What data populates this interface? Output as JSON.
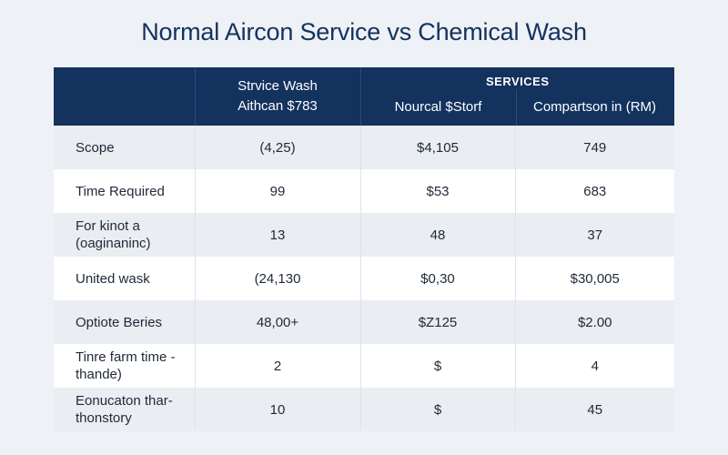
{
  "title": "Normal Aircon Service vs Chemical Wash",
  "header": {
    "col1_line1": "Strvice Wash",
    "col1_line2": "Aithcan $783",
    "group_label": "Services",
    "col2": "Nourcal $Storf",
    "col3": "Compartson in (RM)"
  },
  "rows": [
    {
      "label": [
        "Scope"
      ],
      "v1": "(4,25)",
      "v2": "$4,105",
      "v3": "749"
    },
    {
      "label": [
        "Time Required"
      ],
      "v1": "99",
      "v2": "$53",
      "v3": "683"
    },
    {
      "label": [
        "For kinot a",
        "(oaginaninc)"
      ],
      "v1": "13",
      "v2": "48",
      "v3": "37"
    },
    {
      "label": [
        "United wask"
      ],
      "v1": "(24,130",
      "v2": "$0,30",
      "v3": "$30,005"
    },
    {
      "label": [
        "Optiote Beries"
      ],
      "v1": "48,00+",
      "v2": "$Z125",
      "v3": "$2.00"
    },
    {
      "label": [
        "Tinre farm time -",
        "thande)"
      ],
      "v1": "2",
      "v2": "$",
      "v3": "4"
    },
    {
      "label": [
        "Eonucaton thar-",
        "thonstory"
      ],
      "v1": "10",
      "v2": "$",
      "v3": "45"
    }
  ]
}
